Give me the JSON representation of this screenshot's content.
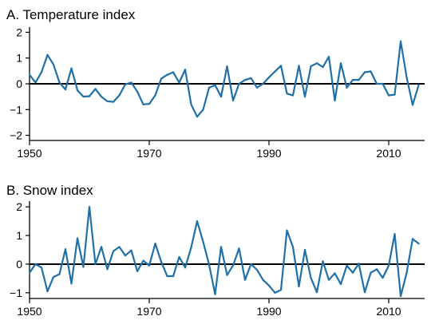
{
  "chart_data": [
    {
      "type": "line",
      "title": "A. Temperature index",
      "xlabel": "",
      "ylabel": "",
      "xlim": [
        1950,
        2016
      ],
      "ylim": [
        -2.2,
        2.2
      ],
      "x_ticks": [
        1950,
        1970,
        1990,
        2010
      ],
      "y_ticks": [
        2,
        1,
        0,
        -1,
        -2
      ],
      "y_tick_labels": [
        "2",
        "1",
        "0",
        "−1",
        "−2"
      ],
      "zero_line": true,
      "color": "#1f6fa8",
      "x": [
        1950,
        1951,
        1952,
        1953,
        1954,
        1955,
        1956,
        1957,
        1958,
        1959,
        1960,
        1961,
        1962,
        1963,
        1964,
        1965,
        1966,
        1967,
        1968,
        1969,
        1970,
        1971,
        1972,
        1973,
        1974,
        1975,
        1976,
        1977,
        1978,
        1979,
        1980,
        1981,
        1982,
        1983,
        1984,
        1985,
        1986,
        1987,
        1988,
        1989,
        1990,
        1991,
        1992,
        1993,
        1994,
        1995,
        1996,
        1997,
        1998,
        1999,
        2000,
        2001,
        2002,
        2003,
        2004,
        2005,
        2006,
        2007,
        2008,
        2009,
        2010,
        2011,
        2012,
        2013,
        2014,
        2015
      ],
      "values": [
        0.35,
        0.05,
        0.45,
        1.12,
        0.75,
        0.05,
        -0.22,
        0.6,
        -0.25,
        -0.5,
        -0.48,
        -0.2,
        -0.5,
        -0.68,
        -0.7,
        -0.45,
        -0.02,
        0.05,
        -0.3,
        -0.8,
        -0.78,
        -0.45,
        0.2,
        0.35,
        0.45,
        0.05,
        0.55,
        -0.8,
        -1.28,
        -1.0,
        -0.15,
        -0.05,
        -0.5,
        0.68,
        -0.65,
        0.0,
        0.15,
        0.22,
        -0.15,
        0.0,
        0.25,
        0.48,
        0.7,
        -0.38,
        -0.45,
        0.7,
        -0.5,
        0.68,
        0.8,
        0.65,
        1.05,
        -0.65,
        0.8,
        -0.15,
        0.15,
        0.15,
        0.45,
        0.48,
        0.0,
        0.0,
        -0.45,
        -0.42,
        1.65,
        0.25,
        -0.82,
        -0.05
      ]
    },
    {
      "type": "line",
      "title": "B. Snow index",
      "xlabel": "",
      "ylabel": "",
      "xlim": [
        1950,
        2016
      ],
      "ylim": [
        -1.2,
        2.2
      ],
      "x_ticks": [
        1950,
        1970,
        1990,
        2010
      ],
      "y_ticks": [
        2,
        1,
        0,
        -1
      ],
      "y_tick_labels": [
        "2",
        "1",
        "0",
        "−1"
      ],
      "zero_line": true,
      "color": "#1f6fa8",
      "x": [
        1950,
        1951,
        1952,
        1953,
        1954,
        1955,
        1956,
        1957,
        1958,
        1959,
        1960,
        1961,
        1962,
        1963,
        1964,
        1965,
        1966,
        1967,
        1968,
        1969,
        1970,
        1971,
        1972,
        1973,
        1974,
        1975,
        1976,
        1977,
        1978,
        1979,
        1980,
        1981,
        1982,
        1983,
        1984,
        1985,
        1986,
        1987,
        1988,
        1989,
        1990,
        1991,
        1992,
        1993,
        1994,
        1995,
        1996,
        1997,
        1998,
        1999,
        2000,
        2001,
        2002,
        2003,
        2004,
        2005,
        2006,
        2007,
        2008,
        2009,
        2010,
        2011,
        2012,
        2013,
        2014,
        2015
      ],
      "values": [
        -0.3,
        0.0,
        -0.12,
        -0.95,
        -0.45,
        -0.35,
        0.52,
        -0.68,
        0.9,
        -0.1,
        2.0,
        0.0,
        0.6,
        -0.18,
        0.45,
        0.6,
        0.3,
        0.48,
        -0.25,
        0.12,
        -0.05,
        0.72,
        0.08,
        -0.42,
        -0.42,
        0.25,
        -0.12,
        0.58,
        1.5,
        0.78,
        -0.02,
        -1.05,
        0.6,
        -0.38,
        -0.05,
        0.55,
        -0.55,
        0.0,
        -0.2,
        -0.55,
        -0.75,
        -1.0,
        -0.9,
        1.18,
        0.6,
        -0.78,
        0.5,
        -0.48,
        -0.98,
        0.1,
        -0.55,
        -0.32,
        -0.7,
        -0.05,
        -0.3,
        0.02,
        -0.98,
        -0.3,
        -0.18,
        -0.48,
        -0.05,
        1.05,
        -1.12,
        -0.3,
        0.88,
        0.72
      ]
    }
  ]
}
